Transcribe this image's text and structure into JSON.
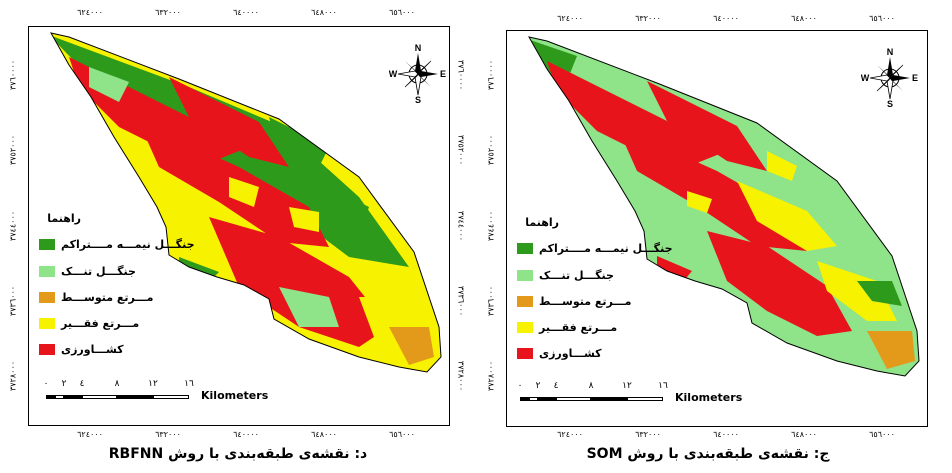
{
  "palette": {
    "semi_dense_forest": "#2e9a1c",
    "sparse_forest": "#8fe388",
    "medium_rangeland": "#e39a1a",
    "poor_rangeland": "#f7f200",
    "agriculture": "#e8141c"
  },
  "ticks": {
    "x": [
      "٦٢٤٠٠٠",
      "٦٣٢٠٠٠",
      "٦٤٠٠٠٠",
      "٦٤٨٠٠٠",
      "٦٥٦٠٠٠"
    ],
    "y": [
      "٣٧٦٠٠٠٠",
      "٣٧٥٢٠٠٠",
      "٣٧٤٤٠٠٠",
      "٣٧٣٦٠٠٠",
      "٣٧٢٨٠٠٠"
    ]
  },
  "north_arrow": {
    "n": "N",
    "s": "S",
    "e": "E",
    "w": "W"
  },
  "legend": {
    "title": "راهنما",
    "items": [
      {
        "label": "جنگـــل نیمـــه مــــتراکم",
        "color": "#2e9a1c"
      },
      {
        "label": "جنگـــل تنـــک",
        "color": "#8fe388"
      },
      {
        "label": "مـــرتع متوســـط",
        "color": "#e39a1a"
      },
      {
        "label": "مـــرتع فقـــیر",
        "color": "#f7f200"
      },
      {
        "label": "کشـــاورزی",
        "color": "#e8141c"
      }
    ]
  },
  "scale": {
    "numbers": [
      "٠",
      "٢",
      "٤",
      "٨",
      "١٢",
      "١٦"
    ],
    "unit": "Kilometers"
  },
  "panels": {
    "left": {
      "caption": "د: نقشه‌ی طبقه‌بندی با روش RBFNN"
    },
    "right": {
      "caption": "ج: نقشه‌ی طبقه‌بندی با روش    SOM"
    }
  }
}
